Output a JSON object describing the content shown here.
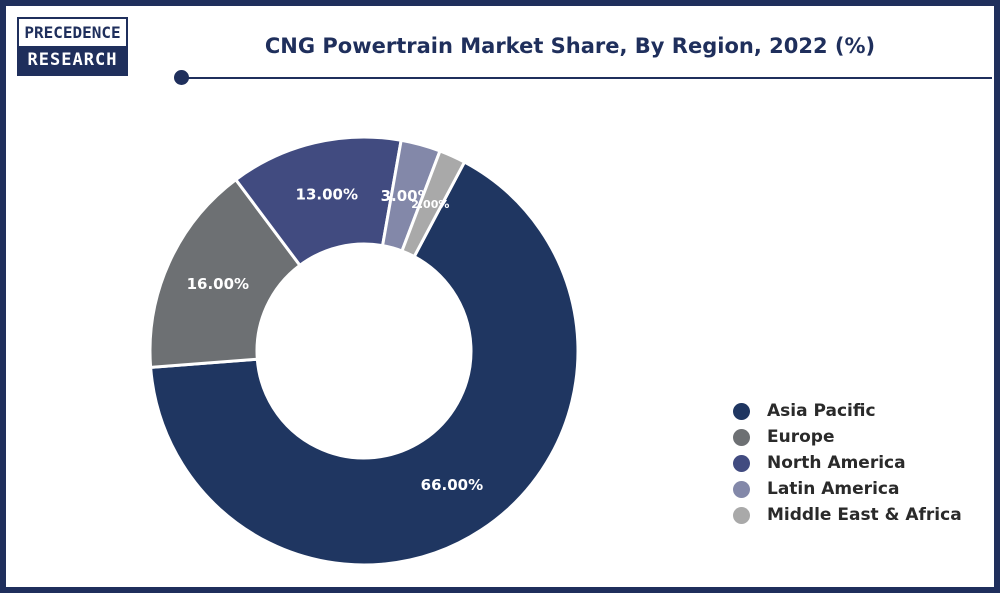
{
  "logo": {
    "line1": "PRECEDENCE",
    "line2": "RESEARCH"
  },
  "chart_data": {
    "type": "pie",
    "donut": true,
    "title": "CNG Powertrain Market Share, By Region, 2022 (%)",
    "legend_position": "bottom-right",
    "categories": [
      "Asia Pacific",
      "Europe",
      "North America",
      "Latin America",
      "Middle East & Africa"
    ],
    "values": [
      66,
      16,
      13,
      3,
      2
    ],
    "data_labels": [
      "66.00%",
      "16.00%",
      "13.00%",
      "3.00%",
      "2.00%"
    ],
    "colors": [
      "#1f3661",
      "#6d7073",
      "#414b80",
      "#8388a9",
      "#a9a9a9"
    ]
  }
}
